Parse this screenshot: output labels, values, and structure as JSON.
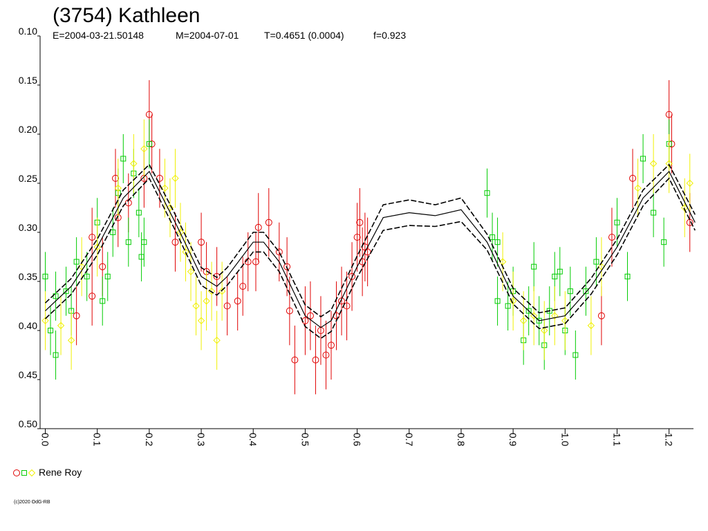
{
  "chart_data": {
    "type": "lightcurve",
    "title": "(3754) Kathleen",
    "subtitle": [
      "E=2004-03-21.50148",
      "M=2004-07-01",
      "T=0.4651 (0.0004)",
      "f=0.923"
    ],
    "observer": "Rene Roy",
    "footer": "(c)2020 OdG-RB",
    "xlim": [
      -0.01,
      1.247
    ],
    "ylim": [
      0.1,
      0.5
    ],
    "y_inverted": true,
    "xticks": [
      {
        "value": 0.0,
        "label": "0.0"
      },
      {
        "value": 0.1,
        "label": "0.1"
      },
      {
        "value": 0.2,
        "label": "0.2"
      },
      {
        "value": 0.3,
        "label": "0.3"
      },
      {
        "value": 0.4,
        "label": "0.4"
      },
      {
        "value": 0.5,
        "label": "0.5"
      },
      {
        "value": 0.6,
        "label": "0.6"
      },
      {
        "value": 0.7,
        "label": "0.7"
      },
      {
        "value": 0.8,
        "label": "0.8"
      },
      {
        "value": 0.9,
        "label": "0.9"
      },
      {
        "value": 1.0,
        "label": "1.0"
      },
      {
        "value": 1.1,
        "label": "1.1"
      },
      {
        "value": 1.2,
        "label": "1.2"
      }
    ],
    "yticks": [
      {
        "value": 0.1,
        "label": "0.10"
      },
      {
        "value": 0.15,
        "label": "0.15"
      },
      {
        "value": 0.2,
        "label": "0.20"
      },
      {
        "value": 0.25,
        "label": "0.25"
      },
      {
        "value": 0.3,
        "label": "0.30"
      },
      {
        "value": 0.35,
        "label": "0.35"
      },
      {
        "value": 0.4,
        "label": "0.40"
      },
      {
        "value": 0.45,
        "label": "0.45"
      },
      {
        "value": 0.5,
        "label": "0.50"
      }
    ],
    "curves": [
      {
        "style": "solid",
        "color": "#000000",
        "x": [
          0.0,
          0.05,
          0.1,
          0.15,
          0.2,
          0.25,
          0.3,
          0.33,
          0.35,
          0.4,
          0.42,
          0.45,
          0.5,
          0.53,
          0.55,
          0.6,
          0.65,
          0.7,
          0.75,
          0.8,
          0.85,
          0.9,
          0.95,
          1.0,
          1.05,
          1.1,
          1.15,
          1.2,
          1.25
        ],
        "values": [
          0.38,
          0.355,
          0.315,
          0.265,
          0.238,
          0.29,
          0.345,
          0.355,
          0.345,
          0.31,
          0.31,
          0.33,
          0.385,
          0.397,
          0.39,
          0.335,
          0.285,
          0.28,
          0.283,
          0.277,
          0.31,
          0.365,
          0.39,
          0.385,
          0.355,
          0.315,
          0.265,
          0.238,
          0.29
        ]
      },
      {
        "style": "dashed",
        "color": "#000000",
        "x": [
          0.0,
          0.05,
          0.1,
          0.15,
          0.2,
          0.25,
          0.3,
          0.33,
          0.35,
          0.4,
          0.42,
          0.45,
          0.5,
          0.53,
          0.55,
          0.6,
          0.65,
          0.7,
          0.75,
          0.8,
          0.85,
          0.9,
          0.95,
          1.0,
          1.05,
          1.1,
          1.15,
          1.2,
          1.25
        ],
        "values": [
          0.372,
          0.347,
          0.307,
          0.257,
          0.231,
          0.282,
          0.336,
          0.346,
          0.336,
          0.3,
          0.3,
          0.32,
          0.374,
          0.386,
          0.379,
          0.324,
          0.272,
          0.267,
          0.272,
          0.265,
          0.302,
          0.357,
          0.382,
          0.377,
          0.347,
          0.307,
          0.257,
          0.231,
          0.282
        ]
      },
      {
        "style": "dashed",
        "color": "#000000",
        "x": [
          0.0,
          0.05,
          0.1,
          0.15,
          0.2,
          0.25,
          0.3,
          0.33,
          0.35,
          0.4,
          0.42,
          0.45,
          0.5,
          0.53,
          0.55,
          0.6,
          0.65,
          0.7,
          0.75,
          0.8,
          0.85,
          0.9,
          0.95,
          1.0,
          1.05,
          1.1,
          1.15,
          1.2,
          1.25
        ],
        "values": [
          0.388,
          0.363,
          0.323,
          0.273,
          0.245,
          0.298,
          0.354,
          0.364,
          0.354,
          0.32,
          0.32,
          0.34,
          0.396,
          0.408,
          0.401,
          0.346,
          0.298,
          0.293,
          0.294,
          0.289,
          0.318,
          0.373,
          0.398,
          0.393,
          0.363,
          0.323,
          0.273,
          0.245,
          0.298
        ]
      }
    ],
    "series": [
      {
        "marker": "circle",
        "color": "#e00000",
        "x": [
          0.06,
          0.09,
          0.09,
          0.11,
          0.14,
          0.135,
          0.16,
          0.19,
          0.2,
          0.205,
          0.22,
          0.25,
          0.3,
          0.31,
          0.33,
          0.35,
          0.37,
          0.38,
          0.39,
          0.405,
          0.41,
          0.43,
          0.45,
          0.465,
          0.47,
          0.48,
          0.5,
          0.51,
          0.52,
          0.53,
          0.54,
          0.55,
          0.56,
          0.57,
          0.58,
          0.59,
          0.6,
          0.605,
          0.61,
          0.615,
          0.62,
          1.07,
          1.09,
          1.13,
          1.2,
          1.205,
          1.24
        ],
        "values": [
          0.385,
          0.365,
          0.305,
          0.335,
          0.285,
          0.245,
          0.27,
          0.245,
          0.18,
          0.21,
          0.245,
          0.31,
          0.31,
          0.34,
          0.345,
          0.375,
          0.37,
          0.355,
          0.33,
          0.33,
          0.295,
          0.29,
          0.32,
          0.335,
          0.38,
          0.43,
          0.39,
          0.385,
          0.43,
          0.4,
          0.425,
          0.415,
          0.385,
          0.37,
          0.375,
          0.345,
          0.305,
          0.29,
          0.33,
          0.315,
          0.32,
          0.385,
          0.305,
          0.245,
          0.18,
          0.21,
          0.29
        ],
        "errors": [
          0.03,
          0.03,
          0.03,
          0.03,
          0.03,
          0.03,
          0.03,
          0.03,
          0.035,
          0.03,
          0.03,
          0.03,
          0.03,
          0.03,
          0.03,
          0.03,
          0.03,
          0.03,
          0.03,
          0.03,
          0.035,
          0.035,
          0.03,
          0.03,
          0.035,
          0.035,
          0.035,
          0.035,
          0.035,
          0.035,
          0.035,
          0.035,
          0.035,
          0.035,
          0.035,
          0.035,
          0.035,
          0.035,
          0.035,
          0.035,
          0.035,
          0.03,
          0.03,
          0.03,
          0.035,
          0.03,
          0.03
        ]
      },
      {
        "marker": "square",
        "color": "#00cc00",
        "x": [
          0.0,
          0.01,
          0.02,
          0.02,
          0.04,
          0.05,
          0.06,
          0.08,
          0.1,
          0.11,
          0.12,
          0.13,
          0.14,
          0.15,
          0.16,
          0.17,
          0.18,
          0.185,
          0.19,
          0.2,
          0.85,
          0.86,
          0.87,
          0.87,
          0.89,
          0.9,
          0.92,
          0.93,
          0.94,
          0.95,
          0.96,
          0.97,
          0.98,
          0.99,
          1.0,
          1.01,
          1.02,
          1.04,
          1.06,
          1.1,
          1.12,
          1.15,
          1.17,
          1.19,
          1.2
        ],
        "values": [
          0.345,
          0.4,
          0.365,
          0.425,
          0.36,
          0.38,
          0.33,
          0.345,
          0.29,
          0.37,
          0.345,
          0.3,
          0.26,
          0.225,
          0.31,
          0.24,
          0.28,
          0.325,
          0.31,
          0.21,
          0.26,
          0.305,
          0.31,
          0.37,
          0.375,
          0.36,
          0.41,
          0.38,
          0.335,
          0.39,
          0.415,
          0.38,
          0.345,
          0.34,
          0.4,
          0.36,
          0.425,
          0.36,
          0.33,
          0.29,
          0.345,
          0.225,
          0.28,
          0.31,
          0.21
        ],
        "errors": [
          0.025,
          0.025,
          0.025,
          0.025,
          0.025,
          0.025,
          0.025,
          0.025,
          0.025,
          0.025,
          0.025,
          0.025,
          0.025,
          0.025,
          0.025,
          0.025,
          0.025,
          0.025,
          0.025,
          0.025,
          0.025,
          0.025,
          0.025,
          0.025,
          0.025,
          0.025,
          0.025,
          0.025,
          0.025,
          0.025,
          0.025,
          0.025,
          0.025,
          0.025,
          0.025,
          0.025,
          0.025,
          0.025,
          0.025,
          0.025,
          0.025,
          0.025,
          0.025,
          0.025,
          0.025
        ]
      },
      {
        "marker": "diamond",
        "color": "#f0f000",
        "x": [
          0.0,
          0.03,
          0.05,
          0.07,
          0.1,
          0.14,
          0.17,
          0.19,
          0.23,
          0.24,
          0.25,
          0.26,
          0.27,
          0.28,
          0.29,
          0.3,
          0.31,
          0.32,
          0.33,
          0.34,
          0.88,
          0.9,
          0.92,
          0.94,
          0.96,
          0.98,
          1.0,
          1.05,
          1.07,
          1.14,
          1.17,
          1.2,
          1.23,
          1.24
        ],
        "values": [
          0.39,
          0.395,
          0.41,
          0.335,
          0.315,
          0.255,
          0.23,
          0.215,
          0.255,
          0.275,
          0.245,
          0.3,
          0.32,
          0.34,
          0.375,
          0.39,
          0.37,
          0.36,
          0.41,
          0.36,
          0.33,
          0.37,
          0.39,
          0.385,
          0.4,
          0.385,
          0.39,
          0.395,
          0.335,
          0.255,
          0.23,
          0.23,
          0.275,
          0.25
        ],
        "errors": [
          0.03,
          0.03,
          0.03,
          0.03,
          0.03,
          0.03,
          0.03,
          0.03,
          0.03,
          0.03,
          0.03,
          0.03,
          0.03,
          0.03,
          0.03,
          0.03,
          0.03,
          0.03,
          0.03,
          0.03,
          0.03,
          0.03,
          0.03,
          0.03,
          0.03,
          0.03,
          0.03,
          0.03,
          0.03,
          0.03,
          0.03,
          0.03,
          0.03,
          0.03
        ]
      }
    ]
  }
}
